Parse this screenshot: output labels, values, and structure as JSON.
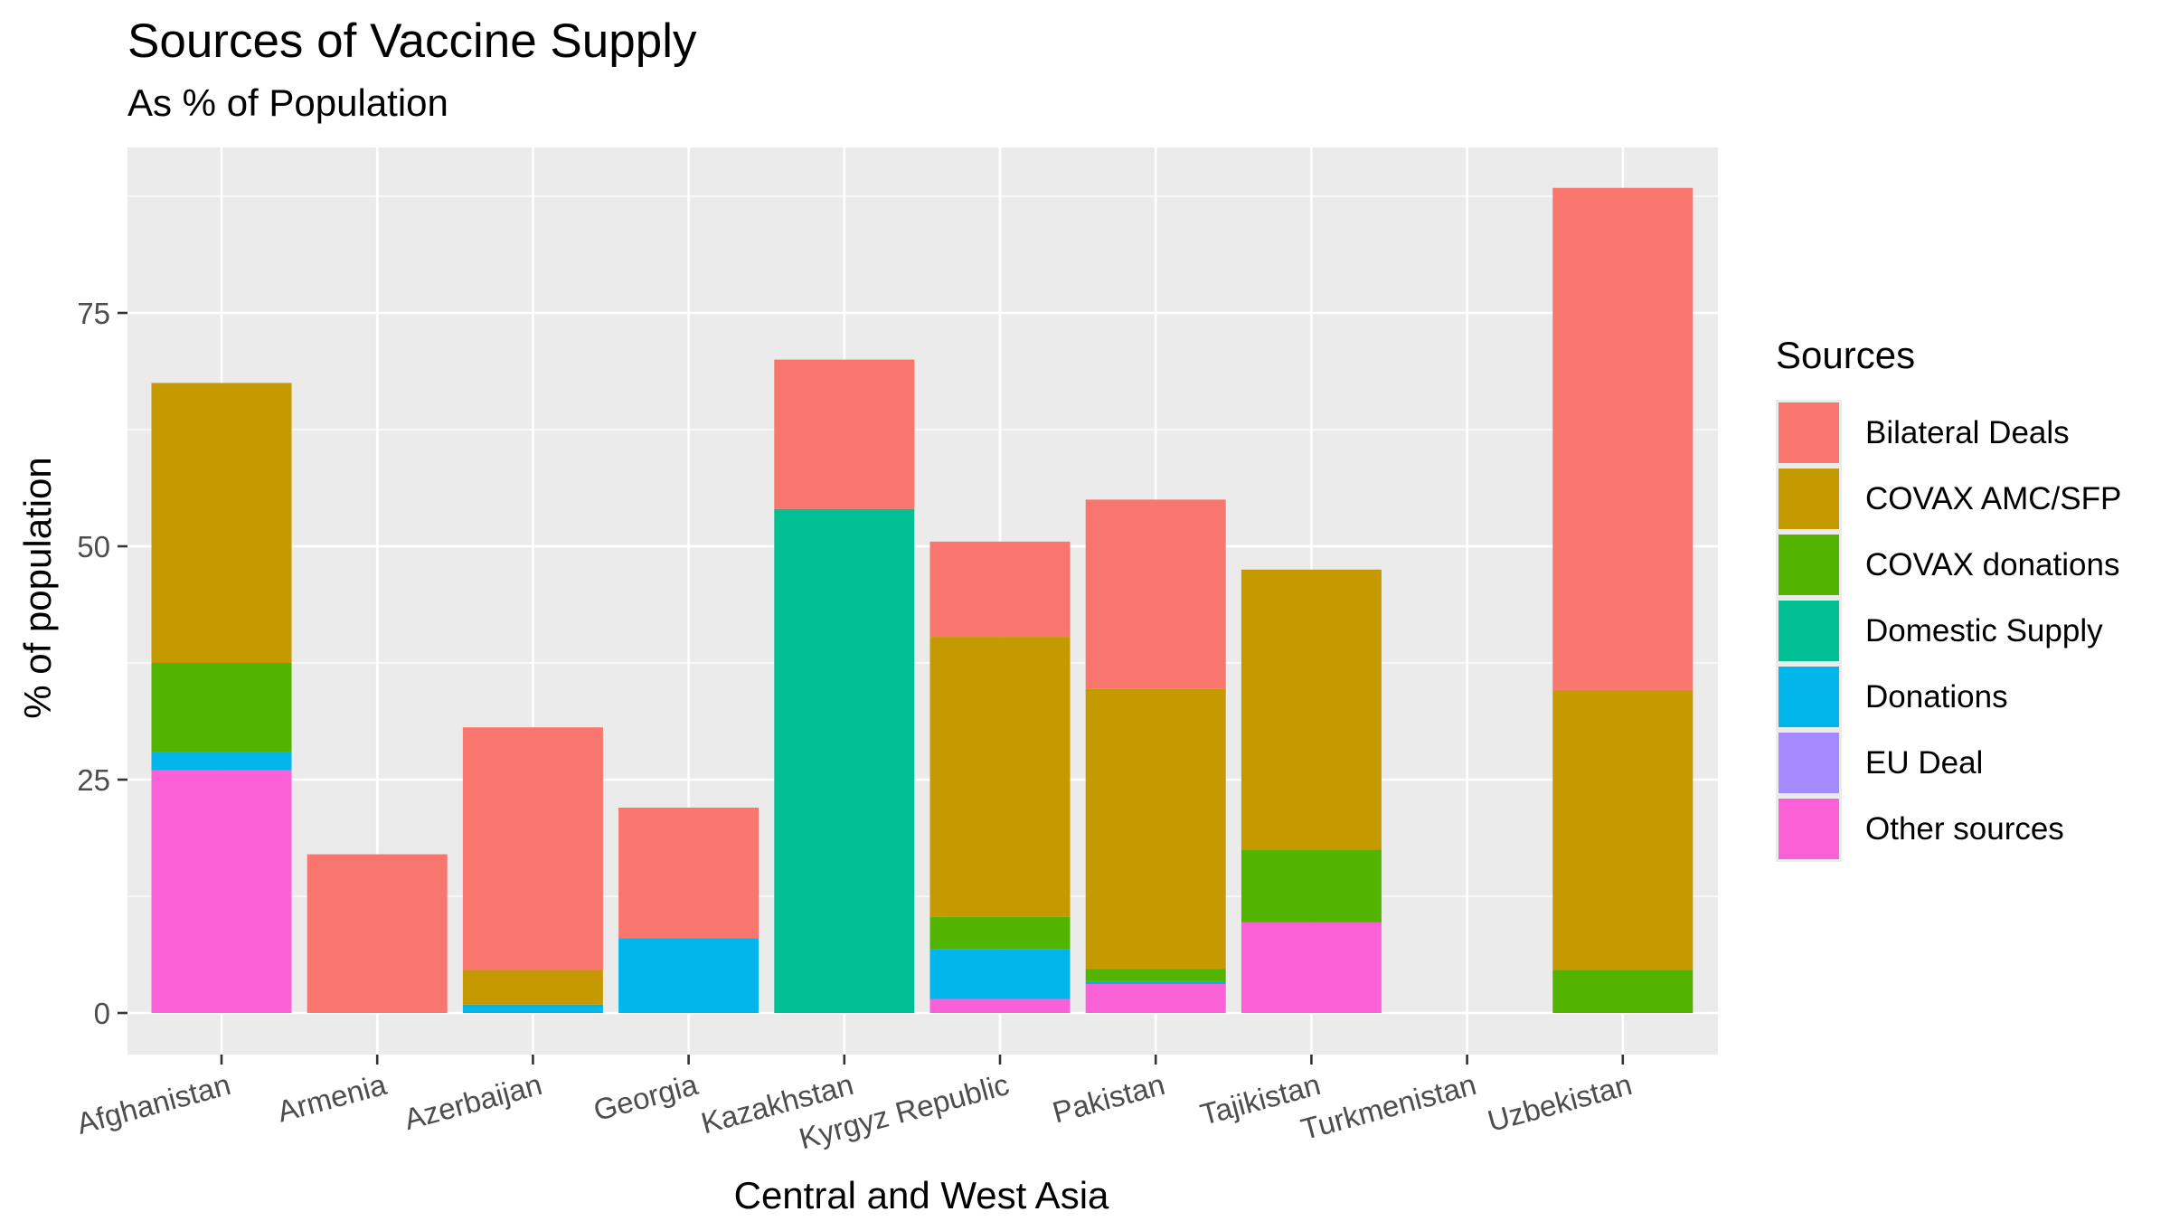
{
  "chart_data": {
    "type": "bar",
    "stacked": true,
    "title": "Sources of Vaccine Supply",
    "subtitle": "As % of Population",
    "xlabel": "Central and West Asia",
    "ylabel": "% of population",
    "ylim": [
      0,
      93
    ],
    "yticks": [
      0,
      25,
      50,
      75
    ],
    "grid": true,
    "legend_title": "Sources",
    "legend_position": "right",
    "categories": [
      "Afghanistan",
      "Armenia",
      "Azerbaijan",
      "Georgia",
      "Kazakhstan",
      "Kyrgyz Republic",
      "Pakistan",
      "Tajikistan",
      "Turkmenistan",
      "Uzbekistan"
    ],
    "series": [
      {
        "name": "Bilateral Deals",
        "color": "#F8766D",
        "values": [
          0,
          17,
          26,
          14,
          16,
          10.2,
          20.3,
          0,
          0,
          53.8
        ]
      },
      {
        "name": "COVAX AMC/SFP",
        "color": "#C49A00",
        "values": [
          30,
          0,
          3.7,
          0,
          0,
          30,
          30,
          30,
          0,
          30
        ]
      },
      {
        "name": "COVAX donations",
        "color": "#53B400",
        "values": [
          9.5,
          0,
          0,
          0,
          0,
          3.5,
          1.3,
          7.8,
          0,
          4.6
        ]
      },
      {
        "name": "Domestic Supply",
        "color": "#00C094",
        "values": [
          0,
          0,
          0,
          0,
          54,
          0,
          0,
          0,
          0,
          0
        ]
      },
      {
        "name": "Donations",
        "color": "#00B6EB",
        "values": [
          2,
          0,
          0.9,
          8,
          0,
          5.3,
          0.3,
          0,
          0,
          0
        ]
      },
      {
        "name": "EU Deal",
        "color": "#A58AFF",
        "values": [
          0,
          0,
          0,
          0,
          0,
          0,
          0,
          0,
          0,
          0
        ]
      },
      {
        "name": "Other sources",
        "color": "#FB61D7",
        "values": [
          26,
          0,
          0,
          0,
          0,
          1.5,
          3.1,
          9.7,
          0,
          0
        ]
      }
    ]
  }
}
